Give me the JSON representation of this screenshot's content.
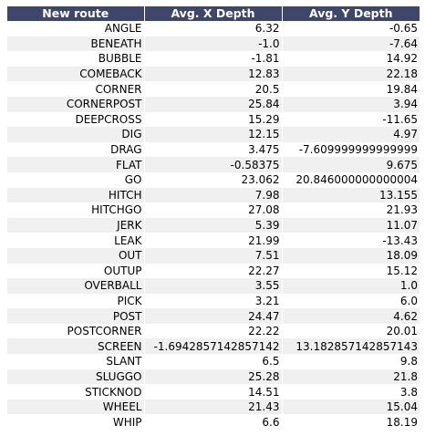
{
  "colors": {
    "header_bg": "#3f466b",
    "header_text": "#ffffff",
    "row_even_bg": "#ffffff",
    "row_odd_bg": "#f0f0f0"
  },
  "table": {
    "headers": [
      "New route",
      "Avg. X Depth",
      "Avg. Y Depth"
    ],
    "rows": [
      [
        "ANGLE",
        "6.32",
        "-0.65"
      ],
      [
        "BENEATH",
        "-1.0",
        "-7.64"
      ],
      [
        "BUBBLE",
        "-1.81",
        "14.92"
      ],
      [
        "COMEBACK",
        "12.83",
        "22.18"
      ],
      [
        "CORNER",
        "20.5",
        "19.84"
      ],
      [
        "CORNERPOST",
        "25.84",
        "3.94"
      ],
      [
        "DEEPCROSS",
        "15.29",
        "-11.65"
      ],
      [
        "DIG",
        "12.15",
        "4.97"
      ],
      [
        "DRAG",
        "3.475",
        "-7.609999999999999"
      ],
      [
        "FLAT",
        "-0.58375",
        "9.675"
      ],
      [
        "GO",
        "23.062",
        "20.846000000000004"
      ],
      [
        "HITCH",
        "7.98",
        "13.155"
      ],
      [
        "HITCHGO",
        "27.08",
        "21.93"
      ],
      [
        "JERK",
        "5.39",
        "11.07"
      ],
      [
        "LEAK",
        "21.99",
        "-13.43"
      ],
      [
        "OUT",
        "7.51",
        "18.09"
      ],
      [
        "OUTUP",
        "22.27",
        "15.12"
      ],
      [
        "OVERBALL",
        "3.55",
        "1.0"
      ],
      [
        "PICK",
        "3.21",
        "6.0"
      ],
      [
        "POST",
        "24.47",
        "4.62"
      ],
      [
        "POSTCORNER",
        "22.22",
        "20.01"
      ],
      [
        "SCREEN",
        "-1.6942857142857142",
        "13.182857142857143"
      ],
      [
        "SLANT",
        "6.5",
        "9.8"
      ],
      [
        "SLUGGO",
        "25.28",
        "21.8"
      ],
      [
        "STICKNOD",
        "14.51",
        "3.8"
      ],
      [
        "WHEEL",
        "21.43",
        "15.04"
      ],
      [
        "WHIP",
        "6.6",
        "18.19"
      ]
    ]
  }
}
